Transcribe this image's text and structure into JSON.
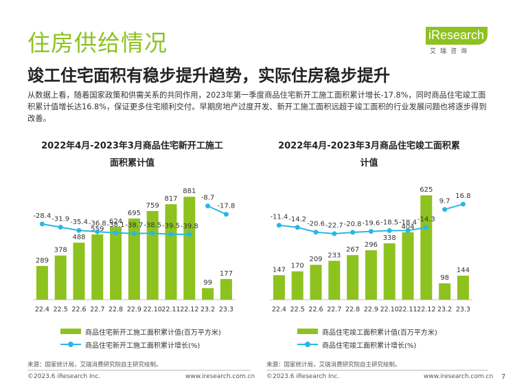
{
  "header": {
    "title": "住房供给情况",
    "subtitle": "竣工住宅面积有稳步提升趋势，实际住房稳步提升",
    "intro": "从数据上看，随着国家政策和供需关系的共同作用，2023年第一季度商品住宅新开工施工面积累计增长-17.8%，同时商品住宅竣工面积累计值增长达16.8%，保证更多住宅顺利交付。早期房地产过度开发、新开工施工面积远超于竣工面积的行业发展问题也将逐步得到改善。"
  },
  "logo": {
    "text": "iResearch",
    "cn": "艾瑞咨询"
  },
  "chart_data": [
    {
      "type": "bar",
      "title": "2022年4月-2023年3月商品住宅新开工施工面积累计值",
      "categories": [
        "22.4",
        "22.5",
        "22.6",
        "22.7",
        "22.8",
        "22.9",
        "22.10",
        "22.11",
        "22.12",
        "23.2",
        "23.3"
      ],
      "series": [
        {
          "name": "商品住宅新开工施工面积累计值(百万平方米)",
          "type": "bar",
          "values": [
            289,
            378,
            488,
            559,
            624,
            695,
            759,
            817,
            881,
            99,
            177
          ]
        },
        {
          "name": "商品住宅新开工施工面积累计增长(%)",
          "type": "line",
          "values": [
            -28.4,
            -31.9,
            -35.4,
            -36.8,
            -38.1,
            -38.7,
            -38.5,
            -39.5,
            -39.8,
            -8.7,
            -17.8
          ]
        }
      ],
      "bar_ylim": [
        0,
        1000
      ],
      "line_ylim": [
        -45,
        0
      ],
      "line_break_after_index": 8,
      "grid": false,
      "legend": "bottom"
    },
    {
      "type": "bar",
      "title": "2022年4月-2023年3月商品住宅竣工面积累计值",
      "categories": [
        "22.4",
        "22.5",
        "22.6",
        "22.7",
        "22.8",
        "22.9",
        "22.10",
        "22.11",
        "22.12",
        "23.2",
        "23.3"
      ],
      "series": [
        {
          "name": "商品住宅竣工面积累计值(百万平方米)",
          "type": "bar",
          "values": [
            147,
            170,
            209,
            233,
            267,
            296,
            338,
            404,
            625,
            98,
            144
          ]
        },
        {
          "name": "商品住宅竣工面积累计增长(%)",
          "type": "line",
          "values": [
            -11.4,
            -14.2,
            -20.6,
            -22.7,
            -20.8,
            -19.6,
            -18.5,
            -18.4,
            -14.3,
            9.7,
            16.8
          ]
        }
      ],
      "bar_ylim": [
        0,
        700
      ],
      "line_ylim": [
        -30,
        25
      ],
      "line_break_after_index": 8,
      "grid": false,
      "legend": "bottom"
    }
  ],
  "colors": {
    "bar": "#8dc21f",
    "line": "#29b6e6",
    "accent": "#8dc21f"
  },
  "footer": {
    "source": "来源：国家统计局，艾瑞消费研究院自主研究绘制。",
    "copyright": "©2023.6 iResearch Inc.",
    "website": "www.iresearch.com.cn",
    "page": "7"
  }
}
